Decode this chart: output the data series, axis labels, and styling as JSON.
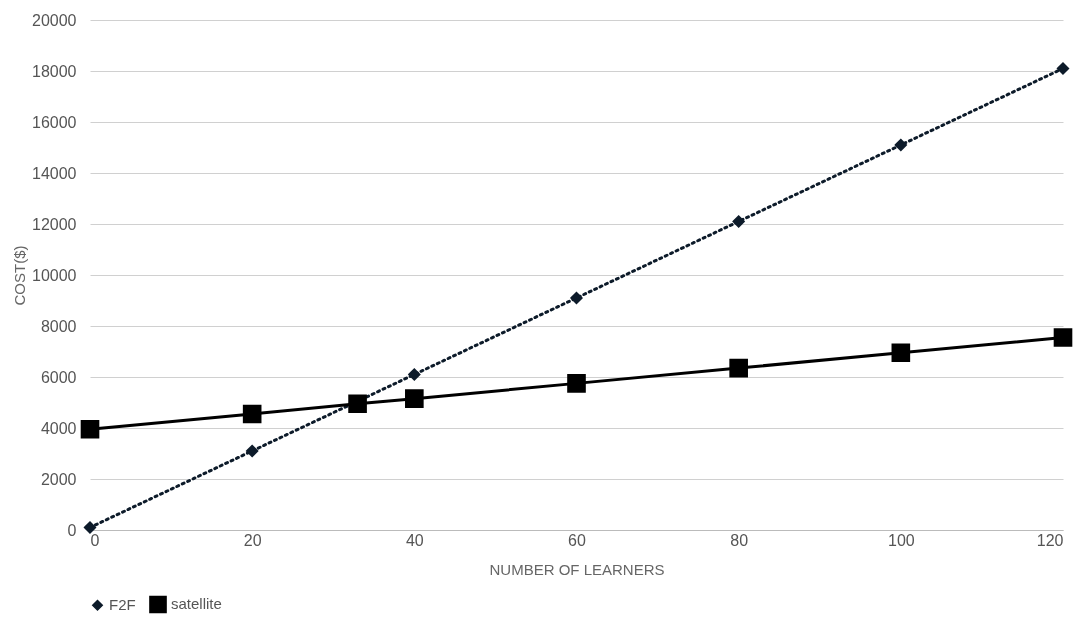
{
  "chart_data": {
    "type": "line",
    "xlabel": "NUMBER OF LEARNERS",
    "ylabel": "COST($)",
    "xlim": [
      0,
      120
    ],
    "xticks": [
      0,
      20,
      40,
      60,
      80,
      100,
      120
    ],
    "ylim": [
      0,
      20000
    ],
    "yticks": [
      0,
      2000,
      4000,
      6000,
      8000,
      10000,
      12000,
      14000,
      16000,
      18000,
      20000
    ],
    "grid": "y",
    "legend": "bottom",
    "series": [
      {
        "name": "F2F",
        "color": "#0d1b2a",
        "marker": "diamond",
        "line_style": "dotted",
        "x": [
          0,
          20,
          40,
          60,
          80,
          100,
          120
        ],
        "values": [
          100,
          3100,
          6100,
          9100,
          12100,
          15100,
          18100
        ]
      },
      {
        "name": "satellite",
        "color": "#000000",
        "marker": "square",
        "line_style": "solid",
        "x": [
          0,
          20,
          33,
          40,
          60,
          80,
          100,
          120
        ],
        "values": [
          3950,
          4550,
          4950,
          5150,
          5750,
          6350,
          6950,
          7550
        ]
      }
    ]
  }
}
